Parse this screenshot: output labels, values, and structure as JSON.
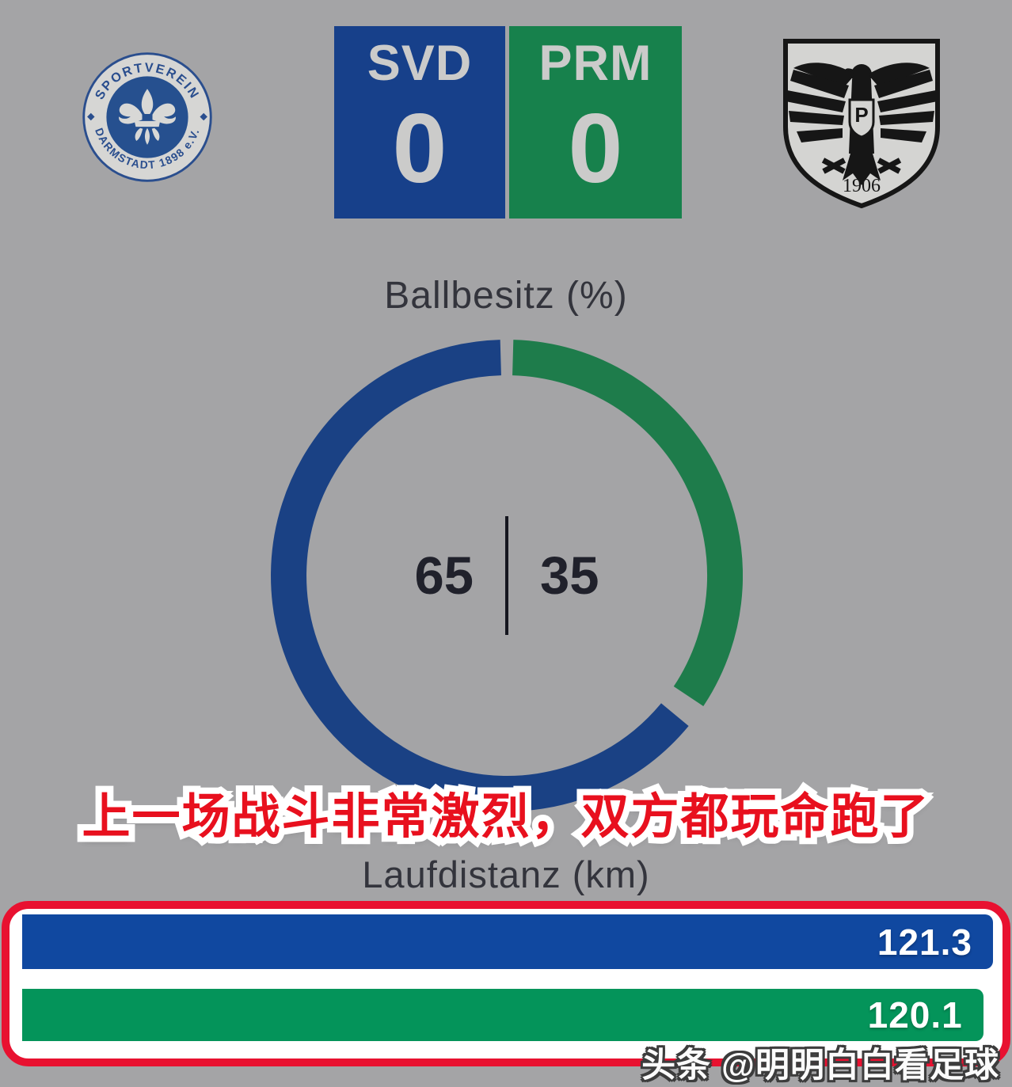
{
  "header": {
    "home": {
      "code": "SVD",
      "score": "0",
      "color": "#17408a"
    },
    "away": {
      "code": "PRM",
      "score": "0",
      "color": "#17814c"
    },
    "home_logo": {
      "top_text": "SPORTVEREIN",
      "bottom_text": "DARMSTADT 1898 e.V."
    },
    "away_logo": {
      "monogram": "P",
      "year": "1906"
    }
  },
  "overlay": {
    "caption": "上一场战斗非常激烈，双方都玩命跑了",
    "caption_color": "#e8101e",
    "watermark": "头条 @明明白白看足球"
  },
  "colors": {
    "highlight_red": "#e81130",
    "background_gray": "#a4a4a6"
  },
  "chart_data": [
    {
      "type": "pie",
      "title": "Ballbesitz (%)",
      "series": [
        {
          "name": "SVD",
          "value": 65,
          "color": "#1a4184"
        },
        {
          "name": "PRM",
          "value": 35,
          "color": "#1e7c4b"
        }
      ],
      "center_labels": [
        "65",
        "35"
      ],
      "donut": true,
      "start": "top",
      "direction": "clockwise"
    },
    {
      "type": "bar",
      "title": "Laufdistanz (km)",
      "categories": [
        "SVD",
        "PRM"
      ],
      "values": [
        121.3,
        120.1
      ],
      "labels": [
        "121.3",
        "120.1"
      ],
      "colors": [
        "#1048a0",
        "#04945a"
      ],
      "xlim": [
        0,
        121.3
      ],
      "orientation": "horizontal",
      "value_position": "inside-right"
    }
  ]
}
